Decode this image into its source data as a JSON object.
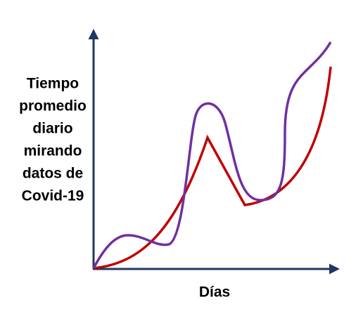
{
  "axes": {
    "y_label_lines": [
      "Tiempo",
      "promedio",
      "diario",
      "mirando",
      "datos de",
      "Covid-19"
    ],
    "x_label": "Días"
  }
}
